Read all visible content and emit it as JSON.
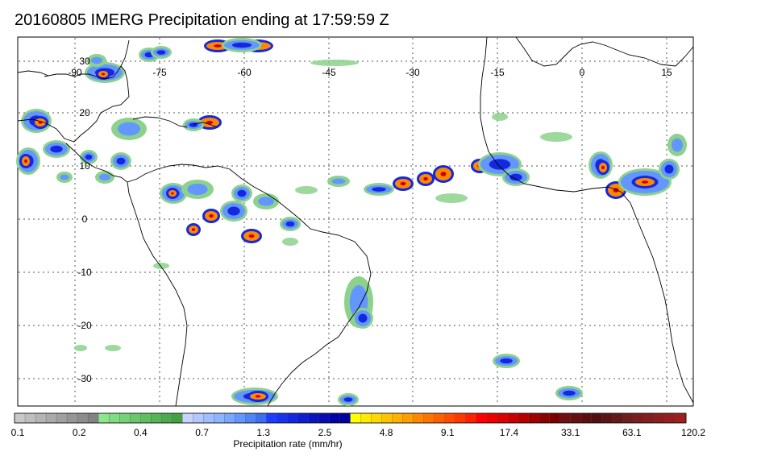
{
  "title": "20160805 IMERG Precipitation ending at 17:59:59 Z",
  "lon_labels": [
    "-90",
    "-75",
    "-60",
    "-45",
    "-30",
    "-15",
    "0",
    "15"
  ],
  "lat_labels": [
    "30",
    "20",
    "10",
    "0",
    "-10",
    "-20",
    "-30"
  ],
  "colorbar": {
    "title": "Precipitation rate (mm/hr)",
    "tick_labels": [
      "0.1",
      "0.2",
      "0.4",
      "0.7",
      "1.3",
      "2.5",
      "4.8",
      "9.1",
      "17.4",
      "33.1",
      "63.1",
      "120.2"
    ],
    "colors": [
      "#c8c8c8",
      "#bebebe",
      "#b4b4b4",
      "#aaaaaa",
      "#a0a0a0",
      "#969696",
      "#8c8c8c",
      "#828282",
      "#8ce68c",
      "#80dc80",
      "#76d276",
      "#6ac86a",
      "#60be60",
      "#56b456",
      "#4caa4c",
      "#44a044",
      "#c8d2ff",
      "#b4c8ff",
      "#a0beff",
      "#8cb4ff",
      "#78a8ff",
      "#6496ff",
      "#5082f8",
      "#3c6ef0",
      "#1e3cff",
      "#1a32f0",
      "#1428e0",
      "#101ed0",
      "#0c14c0",
      "#0a0ab4",
      "#0000a8",
      "#00009c",
      "#ffff00",
      "#ffea00",
      "#ffd800",
      "#ffc400",
      "#ffb000",
      "#ff9c00",
      "#ff8800",
      "#ff7400",
      "#ff6000",
      "#ff4c00",
      "#ff3800",
      "#ff2000",
      "#ff0000",
      "#ec0000",
      "#dc0000",
      "#c80000",
      "#b40000",
      "#a00000",
      "#8c0000",
      "#780000",
      "#6e1010",
      "#641010",
      "#5a1010",
      "#501010",
      "#5a1414",
      "#641818",
      "#6e1c1c",
      "#781e1e",
      "#821e1e",
      "#8c1e1e",
      "#961e1e",
      "#a01e1e"
    ]
  },
  "colors": {
    "coast": "#000000",
    "grid": "#555555",
    "light": "#8cd28c",
    "moderate": "#6496ff",
    "heavy": "#1428e0",
    "intense": "#ff8800",
    "extreme": "#c80000"
  }
}
